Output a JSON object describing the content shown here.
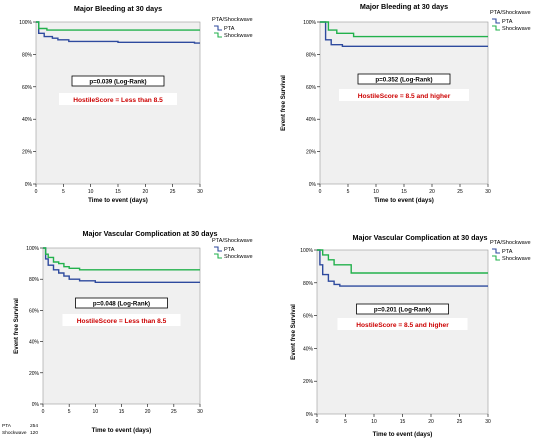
{
  "colors": {
    "pta": "#2e4a9e",
    "shockwave": "#22b14c",
    "score_text": "#cc0000",
    "plot_bg": "#f0f0f0",
    "axis": "#000000"
  },
  "chart_data": [
    {
      "type": "line",
      "panel": "top-left",
      "title": "Major Bleeding at 30 days",
      "xlabel": "Time to event (days)",
      "ylabel": "",
      "xlim": [
        0,
        30
      ],
      "ylim": [
        0,
        100
      ],
      "x_ticks": [
        0,
        5,
        10,
        15,
        20,
        25,
        30
      ],
      "y_ticks": [
        "0%",
        "20%",
        "40%",
        "60%",
        "80%",
        "100%"
      ],
      "legend": {
        "title": "PTA/Shockwave",
        "items": [
          "PTA",
          "Shockwave"
        ],
        "placement": "right"
      },
      "pvalue": "p=0.039 (Log-Rank)",
      "score": "HostileScore = Less than 8.5",
      "series": [
        {
          "name": "PTA",
          "points": [
            [
              0,
              100
            ],
            [
              0.5,
              100
            ],
            [
              0.5,
              93
            ],
            [
              1.5,
              93
            ],
            [
              1.5,
              91
            ],
            [
              3,
              91
            ],
            [
              3,
              90
            ],
            [
              4,
              90
            ],
            [
              4,
              89
            ],
            [
              6,
              89
            ],
            [
              6,
              88
            ],
            [
              15,
              88
            ],
            [
              15,
              87.5
            ],
            [
              29,
              87.5
            ],
            [
              29,
              87
            ],
            [
              30,
              87
            ]
          ]
        },
        {
          "name": "Shockwave",
          "points": [
            [
              0,
              100
            ],
            [
              0.5,
              100
            ],
            [
              0.5,
              96
            ],
            [
              2,
              96
            ],
            [
              2,
              95
            ],
            [
              30,
              95
            ]
          ]
        }
      ],
      "number_at_risk": null
    },
    {
      "type": "line",
      "panel": "top-right",
      "title": "Major Bleeding at 30 days",
      "xlabel": "Time to event (days)",
      "ylabel": "Event free Survival",
      "xlim": [
        0,
        30
      ],
      "ylim": [
        0,
        100
      ],
      "x_ticks": [
        0,
        5,
        10,
        15,
        20,
        25,
        30
      ],
      "y_ticks": [
        "0%",
        "20%",
        "40%",
        "60%",
        "80%",
        "100%"
      ],
      "legend": {
        "title": "PTA/Shockwave",
        "items": [
          "PTA",
          "Shockwave"
        ],
        "placement": "top-right"
      },
      "pvalue": "p=0.352 (Log-Rank)",
      "score": "HostileScore = 8.5 and higher",
      "series": [
        {
          "name": "PTA",
          "points": [
            [
              0,
              100
            ],
            [
              1,
              100
            ],
            [
              1,
              89
            ],
            [
              2,
              89
            ],
            [
              2,
              86
            ],
            [
              4,
              86
            ],
            [
              4,
              85
            ],
            [
              30,
              85
            ]
          ]
        },
        {
          "name": "Shockwave",
          "points": [
            [
              0,
              100
            ],
            [
              1.5,
              100
            ],
            [
              1.5,
              95
            ],
            [
              3,
              95
            ],
            [
              3,
              93
            ],
            [
              6,
              93
            ],
            [
              6,
              91
            ],
            [
              30,
              91
            ]
          ]
        }
      ],
      "number_at_risk": null
    },
    {
      "type": "line",
      "panel": "bottom-left",
      "title": "Major Vascular Complication at 30 days",
      "xlabel": "Time to event (days)",
      "ylabel": "Event free Survival",
      "xlim": [
        0,
        30
      ],
      "ylim": [
        0,
        100
      ],
      "x_ticks": [
        0,
        5,
        10,
        15,
        20,
        25,
        30
      ],
      "y_ticks": [
        "0%",
        "20%",
        "40%",
        "60%",
        "80%",
        "100%"
      ],
      "legend": {
        "title": "PTA/Shockwave",
        "items": [
          "PTA",
          "Shockwave"
        ],
        "placement": "right"
      },
      "pvalue": "p=0.048 (Log-Rank)",
      "score": "HostileScore = Less than 8.5",
      "series": [
        {
          "name": "PTA",
          "points": [
            [
              0,
              100
            ],
            [
              0.5,
              100
            ],
            [
              0.5,
              93
            ],
            [
              1,
              93
            ],
            [
              1,
              89
            ],
            [
              2,
              89
            ],
            [
              2,
              86
            ],
            [
              3,
              86
            ],
            [
              3,
              84
            ],
            [
              4,
              84
            ],
            [
              4,
              82
            ],
            [
              5,
              82
            ],
            [
              5,
              80
            ],
            [
              7,
              80
            ],
            [
              7,
              79
            ],
            [
              10,
              79
            ],
            [
              10,
              78
            ],
            [
              30,
              78
            ]
          ]
        },
        {
          "name": "Shockwave",
          "points": [
            [
              0,
              100
            ],
            [
              0.5,
              100
            ],
            [
              0.5,
              96
            ],
            [
              1,
              96
            ],
            [
              1,
              94
            ],
            [
              2,
              94
            ],
            [
              2,
              91
            ],
            [
              3,
              91
            ],
            [
              3,
              90
            ],
            [
              4,
              90
            ],
            [
              4,
              88
            ],
            [
              5,
              88
            ],
            [
              5,
              87
            ],
            [
              7,
              87
            ],
            [
              7,
              86
            ],
            [
              30,
              86
            ]
          ]
        }
      ],
      "number_at_risk": {
        "rows": [
          {
            "label": "PTA",
            "value": "254"
          },
          {
            "label": "Shockwave",
            "value": "120"
          }
        ]
      }
    },
    {
      "type": "line",
      "panel": "bottom-right",
      "title": "Major Vascular Complication at 30 days",
      "xlabel": "Time to event (days)",
      "ylabel": "Event free Survival",
      "xlim": [
        0,
        30
      ],
      "ylim": [
        0,
        100
      ],
      "x_ticks": [
        0,
        5,
        10,
        15,
        20,
        25,
        30
      ],
      "y_ticks": [
        "0%",
        "20%",
        "40%",
        "60%",
        "80%",
        "100%"
      ],
      "legend": {
        "title": "PTA/Shockwave",
        "items": [
          "PTA",
          "Shockwave"
        ],
        "placement": "top-right"
      },
      "pvalue": "p=0.201 (Log-Rank)",
      "score": "HostileScore = 8.5 and higher",
      "series": [
        {
          "name": "PTA",
          "points": [
            [
              0,
              100
            ],
            [
              0.5,
              100
            ],
            [
              0.5,
              91
            ],
            [
              1,
              91
            ],
            [
              1,
              85
            ],
            [
              2,
              85
            ],
            [
              2,
              81
            ],
            [
              3,
              81
            ],
            [
              3,
              79
            ],
            [
              4,
              79
            ],
            [
              4,
              78
            ],
            [
              30,
              78
            ]
          ]
        },
        {
          "name": "Shockwave",
          "points": [
            [
              0,
              100
            ],
            [
              1,
              100
            ],
            [
              1,
              97
            ],
            [
              2,
              97
            ],
            [
              2,
              94
            ],
            [
              3,
              94
            ],
            [
              3,
              91
            ],
            [
              6,
              91
            ],
            [
              6,
              86
            ],
            [
              30,
              86
            ]
          ]
        }
      ],
      "number_at_risk": null
    }
  ]
}
